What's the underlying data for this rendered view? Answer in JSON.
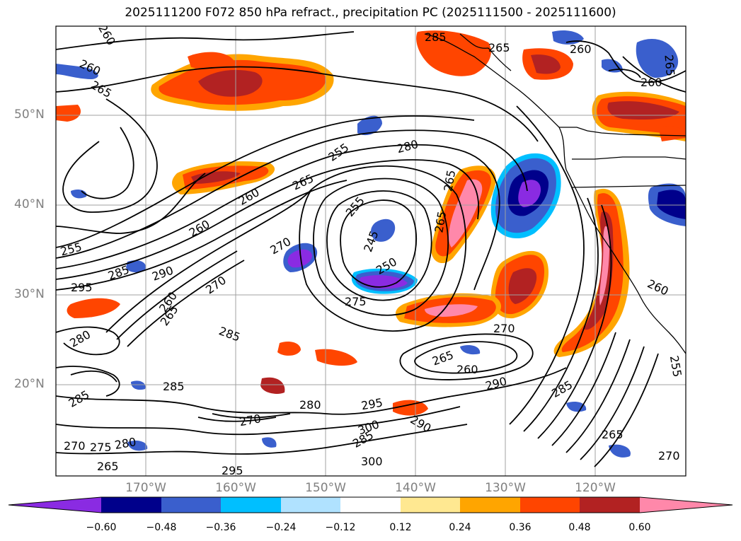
{
  "title": "2025111200 F072 850 hPa refract., precipitation PC (2025111500 - 2025111600)",
  "lat_labels": [
    "50°N",
    "40°N",
    "30°N",
    "20°N"
  ],
  "lon_labels": [
    "170°W",
    "160°W",
    "150°W",
    "140°W",
    "130°W",
    "120°W"
  ],
  "colorbar": {
    "colors": [
      "#8a2be2",
      "#00008b",
      "#3a5fcd",
      "#00bfff",
      "#b0e2ff",
      "#ffffff",
      "#ffe891",
      "#ffa500",
      "#ff4500",
      "#b22222",
      "#ff88aa"
    ],
    "ticks": [
      "−0.60",
      "−0.48",
      "−0.36",
      "−0.24",
      "−0.12",
      "0.12",
      "0.24",
      "0.36",
      "0.48",
      "0.60"
    ]
  },
  "contour_labels": [
    {
      "text": "260"
    },
    {
      "text": "260"
    },
    {
      "text": "265"
    },
    {
      "text": "285"
    },
    {
      "text": "265"
    },
    {
      "text": "260"
    },
    {
      "text": "265"
    },
    {
      "text": "260"
    },
    {
      "text": "255"
    },
    {
      "text": "280"
    },
    {
      "text": "260"
    },
    {
      "text": "265"
    },
    {
      "text": "260"
    },
    {
      "text": "255"
    },
    {
      "text": "270"
    },
    {
      "text": "245"
    },
    {
      "text": "265"
    },
    {
      "text": "265"
    },
    {
      "text": "255"
    },
    {
      "text": "285"
    },
    {
      "text": "290"
    },
    {
      "text": "295"
    },
    {
      "text": "270"
    },
    {
      "text": "260"
    },
    {
      "text": "265"
    },
    {
      "text": "250"
    },
    {
      "text": "275"
    },
    {
      "text": "280"
    },
    {
      "text": "270"
    },
    {
      "text": "260"
    },
    {
      "text": "285"
    },
    {
      "text": "285"
    },
    {
      "text": "265"
    },
    {
      "text": "260"
    },
    {
      "text": "290"
    },
    {
      "text": "285"
    },
    {
      "text": "280"
    },
    {
      "text": "295"
    },
    {
      "text": "270"
    },
    {
      "text": "300"
    },
    {
      "text": "290"
    },
    {
      "text": "285"
    },
    {
      "text": "270"
    },
    {
      "text": "275"
    },
    {
      "text": "280"
    },
    {
      "text": "265"
    },
    {
      "text": "300"
    },
    {
      "text": "295"
    },
    {
      "text": "265"
    },
    {
      "text": "270"
    },
    {
      "text": "285"
    },
    {
      "text": "255"
    }
  ]
}
